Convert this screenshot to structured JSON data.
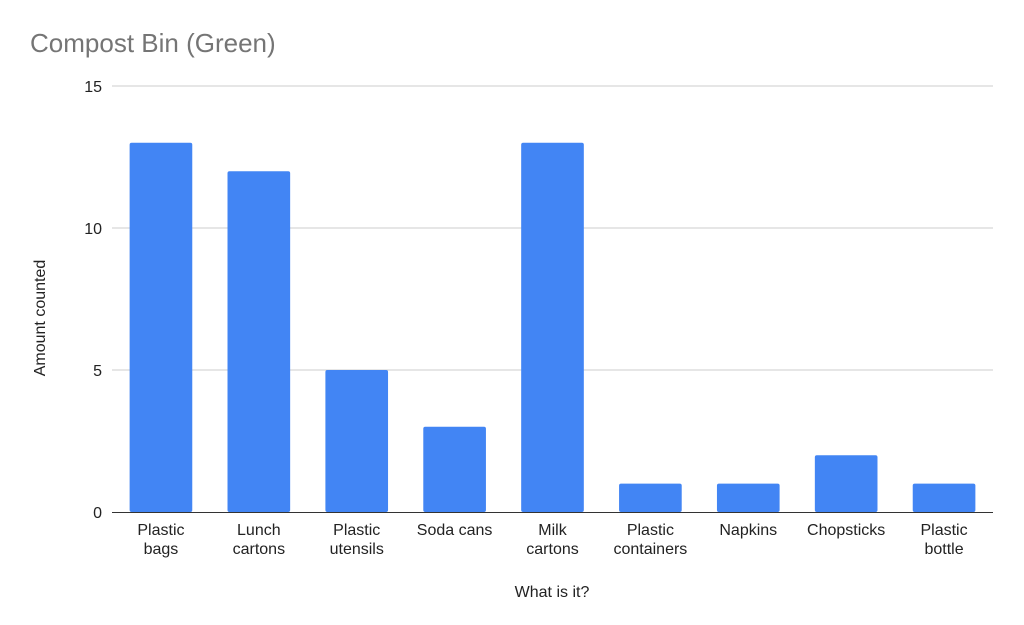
{
  "chart_data": {
    "type": "bar",
    "title": "Compost Bin (Green)",
    "xlabel": "What is it?",
    "ylabel": "Amount counted",
    "categories": [
      [
        "Plastic",
        "bags"
      ],
      [
        "Lunch",
        "cartons"
      ],
      [
        "Plastic",
        "utensils"
      ],
      [
        "Soda cans"
      ],
      [
        "Milk",
        "cartons"
      ],
      [
        "Plastic",
        "containers"
      ],
      [
        "Napkins"
      ],
      [
        "Chopsticks"
      ],
      [
        "Plastic",
        "bottle"
      ]
    ],
    "values": [
      13,
      12,
      5,
      3,
      13,
      1,
      1,
      2,
      1
    ],
    "ylim": [
      0,
      15
    ],
    "yticks": [
      0,
      5,
      10,
      15
    ],
    "grid": true,
    "legend": "none",
    "bar_color": "#4285f4"
  }
}
